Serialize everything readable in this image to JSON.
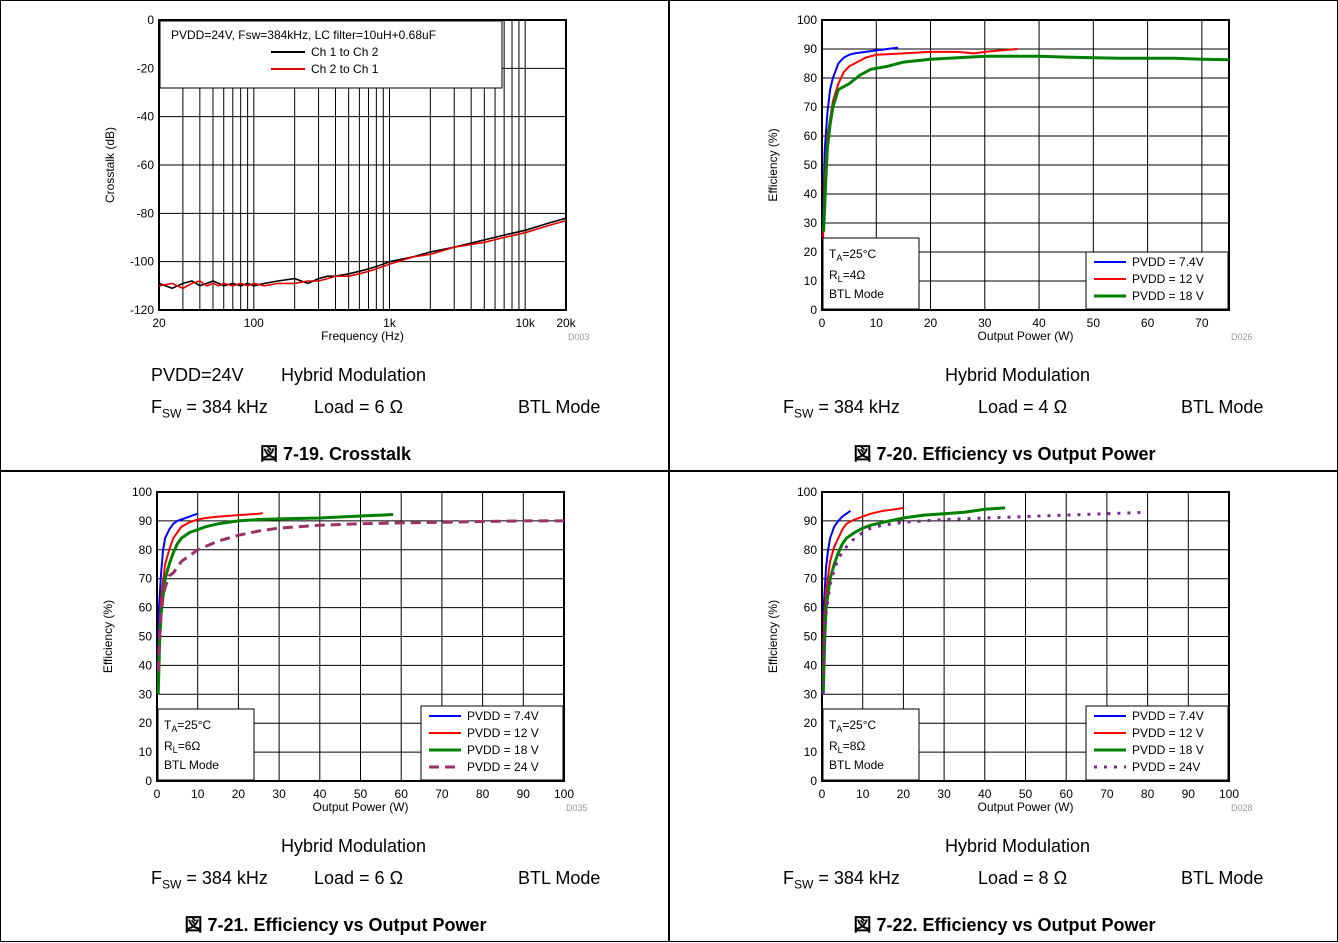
{
  "panels": [
    {
      "chart_data": {
        "type": "line",
        "xscale": "log",
        "xlabel": "Frequency (Hz)",
        "ylabel": "Crosstalk (dB)",
        "xlim": [
          20,
          20000
        ],
        "ylim": [
          -120,
          0
        ],
        "xticks": [
          20,
          100,
          1000,
          10000,
          20000
        ],
        "xtick_labels": [
          "20",
          "100",
          "1k",
          "10k",
          "20k"
        ],
        "yticks": [
          -120,
          -100,
          -80,
          -60,
          -40,
          -20,
          0
        ],
        "grid": true,
        "legend_title": "PVDD=24V, Fsw=384kHz, LC filter=10uH+0.68uF",
        "legend_position": "top-left",
        "code": "D003",
        "series": [
          {
            "name": "Ch 1 to Ch 2",
            "color": "#000000",
            "x": [
              20,
              25,
              30,
              35,
              40,
              45,
              50,
              55,
              60,
              70,
              80,
              90,
              100,
              120,
              150,
              200,
              250,
              300,
              350,
              400,
              500,
              600,
              700,
              800,
              900,
              1000,
              1500,
              2000,
              3000,
              5000,
              7000,
              10000,
              15000,
              20000
            ],
            "y": [
              -109,
              -111,
              -109,
              -108,
              -110,
              -109,
              -108,
              -109,
              -110,
              -109,
              -110,
              -109,
              -110,
              -109,
              -108,
              -107,
              -109,
              -107,
              -106,
              -106,
              -105,
              -104,
              -103,
              -102,
              -101,
              -100,
              -98,
              -96,
              -94,
              -91,
              -89,
              -87,
              -84,
              -82
            ]
          },
          {
            "name": "Ch 2 to Ch 1",
            "color": "#e00000",
            "x": [
              20,
              25,
              30,
              35,
              40,
              45,
              50,
              55,
              60,
              70,
              80,
              90,
              100,
              120,
              150,
              200,
              250,
              300,
              350,
              400,
              500,
              600,
              700,
              800,
              900,
              1000,
              1500,
              2000,
              3000,
              5000,
              7000,
              10000,
              15000,
              20000
            ],
            "y": [
              -110,
              -109,
              -111,
              -109,
              -108,
              -110,
              -109,
              -110,
              -109,
              -110,
              -109,
              -110,
              -109,
              -110,
              -109,
              -109,
              -108,
              -108,
              -107,
              -106,
              -106,
              -105,
              -104,
              -103,
              -102,
              -101,
              -98,
              -97,
              -94,
              -92,
              -90,
              -88,
              -85,
              -83
            ]
          }
        ]
      },
      "caption_line1": [
        "PVDD=24V",
        "Hybrid Modulation"
      ],
      "caption_line2": {
        "fsw": "= 384 kHz",
        "load": "Load = 6 Ω",
        "mode": "BTL Mode"
      },
      "figure_title": "図 7-19. Crosstalk"
    },
    {
      "chart_data": {
        "type": "line",
        "xlabel": "Output Power (W)",
        "ylabel": "Efficiency (%)",
        "xlim": [
          0,
          75
        ],
        "ylim": [
          0,
          100
        ],
        "xticks": [
          0,
          10,
          20,
          30,
          40,
          50,
          60,
          70
        ],
        "yticks": [
          0,
          10,
          20,
          30,
          40,
          50,
          60,
          70,
          80,
          90,
          100
        ],
        "grid": true,
        "legend_position": "bottom-right",
        "annotation": {
          "ta": "=25°C",
          "rl": "=4Ω",
          "mode": "BTL Mode"
        },
        "code": "D026",
        "series": [
          {
            "name": "PVDD = 7.4V",
            "color": "#0000ff",
            "dash": "none",
            "x": [
              0.2,
              0.5,
              1,
              1.5,
              2,
              3,
              4,
              5,
              6,
              8,
              10,
              12,
              14
            ],
            "y": [
              30,
              55,
              68,
              76,
              80,
              85,
              87,
              88,
              88.5,
              89,
              89.5,
              90,
              90.5
            ]
          },
          {
            "name": "PVDD = 12 V",
            "color": "#ff0000",
            "dash": "none",
            "x": [
              0.2,
              0.5,
              1,
              2,
              3,
              4,
              5,
              6,
              8,
              10,
              15,
              20,
              25,
              28,
              30,
              33,
              36
            ],
            "y": [
              25,
              45,
              60,
              72,
              78,
              82,
              84,
              85,
              87,
              88,
              88.5,
              89,
              89,
              88.5,
              89,
              89.5,
              90
            ]
          },
          {
            "name": "PVDD = 18 V",
            "color": "#008000",
            "dash": "none",
            "x": [
              0.3,
              0.7,
              1,
              1.5,
              2,
              2.5,
              3,
              4,
              5,
              7,
              9,
              12,
              15,
              20,
              25,
              30,
              35,
              40,
              45,
              50,
              55,
              60,
              65,
              70,
              75
            ],
            "y": [
              27,
              45,
              56,
              64,
              70,
              73,
              76,
              77,
              78,
              81,
              83,
              84,
              85.5,
              86.5,
              87,
              87.5,
              87.5,
              87.5,
              87.2,
              87,
              86.8,
              86.8,
              86.8,
              86.5,
              86.3
            ]
          }
        ]
      },
      "caption_line1": [
        "Hybrid Modulation"
      ],
      "caption_line2": {
        "fsw": "= 384 kHz",
        "load": "Load = 4 Ω",
        "mode": "BTL Mode"
      },
      "figure_title": "図 7-20. Efficiency vs Output Power"
    },
    {
      "chart_data": {
        "type": "line",
        "xlabel": "Output Power (W)",
        "ylabel": "Efficiency (%)",
        "xlim": [
          0,
          100
        ],
        "ylim": [
          0,
          100
        ],
        "xticks": [
          0,
          10,
          20,
          30,
          40,
          50,
          60,
          70,
          80,
          90,
          100
        ],
        "yticks": [
          0,
          10,
          20,
          30,
          40,
          50,
          60,
          70,
          80,
          90,
          100
        ],
        "grid": true,
        "legend_position": "bottom-right",
        "annotation": {
          "ta": "=25°C",
          "rl": "=6Ω",
          "mode": "BTL Mode"
        },
        "code": "D035",
        "series": [
          {
            "name": "PVDD = 7.4V",
            "color": "#0000ff",
            "dash": "none",
            "x": [
              0.2,
              0.5,
              1,
              1.5,
              2,
              3,
              4,
              5,
              6,
              8,
              10
            ],
            "y": [
              35,
              60,
              72,
              80,
              84,
              87,
              89,
              90,
              90.5,
              91.5,
              92.5
            ]
          },
          {
            "name": "PVDD = 12 V",
            "color": "#ff0000",
            "dash": "none",
            "x": [
              0.2,
              0.5,
              1,
              2,
              3,
              4,
              5,
              6,
              8,
              10,
              12,
              15,
              20,
              25,
              26
            ],
            "y": [
              30,
              50,
              63,
              75,
              80,
              84,
              86,
              88,
              89.5,
              90.5,
              91,
              91.5,
              92,
              92.5,
              92.7
            ]
          },
          {
            "name": "PVDD = 18 V",
            "color": "#008000",
            "dash": "none",
            "x": [
              0.3,
              0.7,
              1,
              2,
              3,
              4,
              5,
              6,
              8,
              10,
              12,
              15,
              20,
              25,
              30,
              40,
              50,
              55,
              58
            ],
            "y": [
              30,
              50,
              58,
              70,
              75,
              79,
              82,
              84,
              86,
              87,
              88,
              89,
              90,
              90.5,
              90.7,
              91,
              91.7,
              92,
              92.2
            ]
          },
          {
            "name": "PVDD = 24 V",
            "color": "#993366",
            "dash": "10,6",
            "x": [
              0.3,
              0.7,
              1,
              1.5,
              2,
              3,
              4,
              5,
              6,
              8,
              10,
              15,
              20,
              25,
              30,
              40,
              50,
              60,
              70,
              80,
              90,
              100
            ],
            "y": [
              38,
              50,
              58,
              64,
              67,
              71,
              72,
              74,
              76,
              78,
              80,
              83,
              85,
              86.5,
              87.5,
              88.5,
              89,
              89.3,
              89.5,
              89.8,
              90,
              90
            ]
          }
        ]
      },
      "caption_line1": [
        "Hybrid Modulation"
      ],
      "caption_line2": {
        "fsw": "= 384 kHz",
        "load": "Load = 6 Ω",
        "mode": "BTL Mode"
      },
      "figure_title": "図 7-21. Efficiency vs Output Power"
    },
    {
      "chart_data": {
        "type": "line",
        "xlabel": "Output Power (W)",
        "ylabel": "Efficiency (%)",
        "xlim": [
          0,
          100
        ],
        "ylim": [
          0,
          100
        ],
        "xticks": [
          0,
          10,
          20,
          30,
          40,
          50,
          60,
          70,
          80,
          90,
          100
        ],
        "yticks": [
          0,
          10,
          20,
          30,
          40,
          50,
          60,
          70,
          80,
          90,
          100
        ],
        "grid": true,
        "legend_position": "bottom-right",
        "annotation": {
          "ta": "=25°C",
          "rl": "=8Ω",
          "mode": "BTL Mode"
        },
        "code": "D028",
        "series": [
          {
            "name": "PVDD = 7.4V",
            "color": "#0000ff",
            "dash": "none",
            "x": [
              0.2,
              0.5,
              1,
              1.5,
              2,
              3,
              4,
              5,
              6,
              7
            ],
            "y": [
              38,
              62,
              74,
              80,
              84,
              88,
              90,
              91.5,
              92.5,
              93.5
            ]
          },
          {
            "name": "PVDD = 12 V",
            "color": "#ff0000",
            "dash": "none",
            "x": [
              0.2,
              0.5,
              1,
              2,
              3,
              4,
              5,
              6,
              8,
              10,
              12,
              15,
              18,
              20
            ],
            "y": [
              35,
              55,
              66,
              76,
              81,
              84,
              87,
              89,
              90.5,
              91.5,
              92.5,
              93.5,
              94,
              94.5
            ]
          },
          {
            "name": "PVDD = 18 V",
            "color": "#008000",
            "dash": "none",
            "x": [
              0.3,
              0.7,
              1,
              2,
              3,
              4,
              5,
              6,
              8,
              10,
              12,
              15,
              20,
              25,
              30,
              35,
              40,
              45
            ],
            "y": [
              30,
              50,
              60,
              70,
              75,
              79,
              82,
              84,
              86,
              87.5,
              88.5,
              89.5,
              91,
              92,
              92.5,
              93,
              94,
              94.5
            ]
          },
          {
            "name": "PVDD = 24V",
            "color": "#7b2a8c",
            "dash": "3,7",
            "x": [
              0.3,
              0.7,
              1,
              2,
              3,
              4,
              5,
              6,
              8,
              10,
              12,
              15,
              20,
              25,
              30,
              40,
              50,
              60,
              70,
              80
            ],
            "y": [
              30,
              50,
              58,
              68,
              73,
              77,
              79,
              81,
              84,
              86,
              87.5,
              88.5,
              89.5,
              90,
              90.5,
              91,
              91.5,
              92,
              92.5,
              93
            ]
          }
        ]
      },
      "caption_line1": [
        "Hybrid Modulation"
      ],
      "caption_line2": {
        "fsw": "= 384 kHz",
        "load": "Load = 8 Ω",
        "mode": "BTL Mode"
      },
      "figure_title": "図 7-22. Efficiency vs Output Power"
    }
  ],
  "labels": {
    "fsw_prefix": "F",
    "fsw_sub": "SW",
    "ta_prefix": "T",
    "ta_sub": "A",
    "rl_prefix": "R",
    "rl_sub": "L"
  }
}
